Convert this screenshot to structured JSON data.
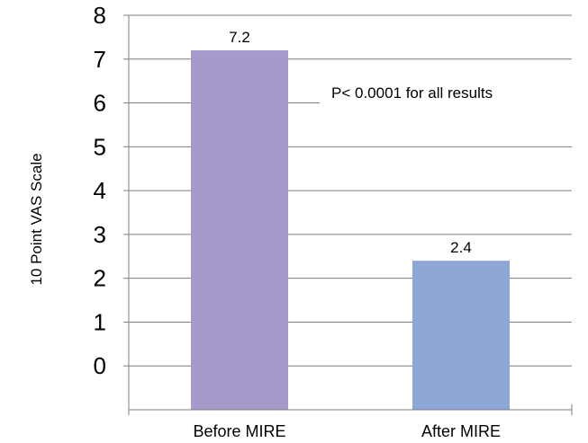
{
  "chart_data": {
    "type": "bar",
    "categories": [
      "Before MIRE",
      "After MIRE"
    ],
    "values": [
      7.2,
      2.4
    ],
    "data_labels": [
      "7.2",
      "2.4"
    ],
    "bar_colors": [
      "#a899cb",
      "#8ea6d6"
    ],
    "title": "",
    "xlabel": "",
    "ylabel": "10 Point VAS Scale",
    "yticks": [
      "8",
      "7",
      "6",
      "5",
      "4",
      "3",
      "2",
      "1",
      "0"
    ],
    "ylim": [
      0,
      8
    ],
    "grid": true,
    "legend": "none",
    "annotation": "P< 0.0001 for all results"
  }
}
